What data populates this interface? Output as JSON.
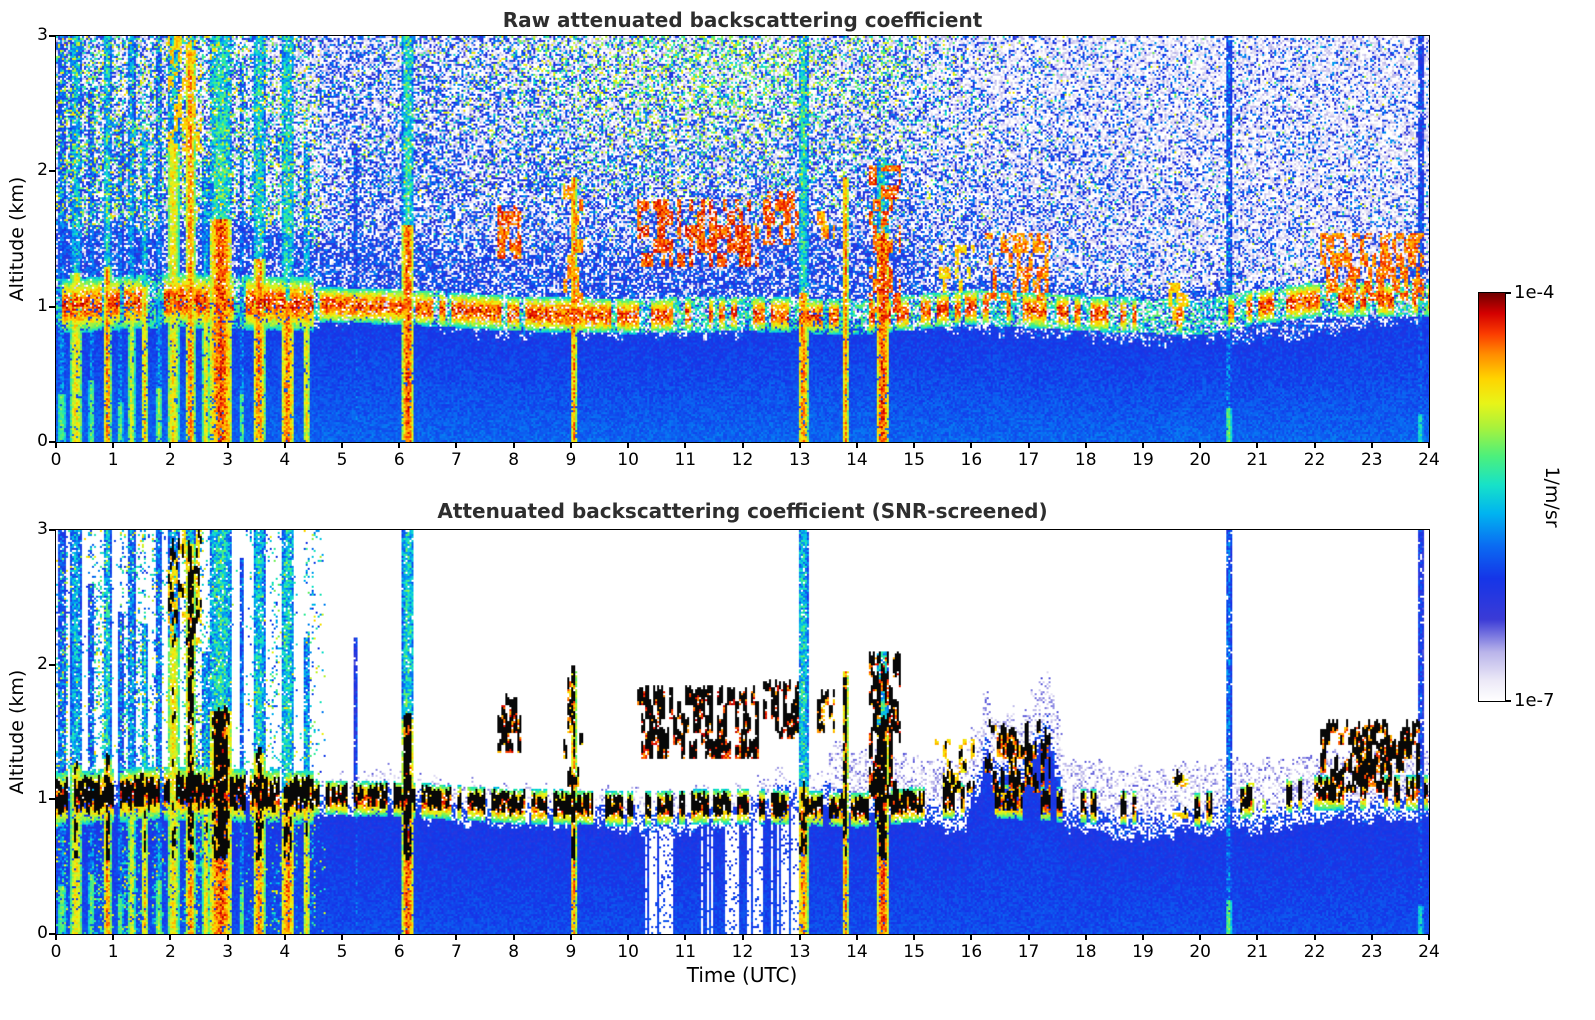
{
  "chart_data": {
    "type": "heatmap",
    "panels": [
      {
        "title": "Raw attenuated backscattering coefficient",
        "x_range": [
          0,
          24
        ],
        "y_range": [
          0,
          3
        ],
        "x_ticks": [
          0,
          1,
          2,
          3,
          4,
          5,
          6,
          7,
          8,
          9,
          10,
          11,
          12,
          13,
          14,
          15,
          16,
          17,
          18,
          19,
          20,
          21,
          22,
          23,
          24
        ],
        "y_ticks": [
          0,
          1,
          2,
          3
        ],
        "y_label": "Altitude (km)",
        "snr_screened": false
      },
      {
        "title": "Attenuated backscattering coefficient (SNR-screened)",
        "x_range": [
          0,
          24
        ],
        "y_range": [
          0,
          3
        ],
        "x_ticks": [
          0,
          1,
          2,
          3,
          4,
          5,
          6,
          7,
          8,
          9,
          10,
          11,
          12,
          13,
          14,
          15,
          16,
          17,
          18,
          19,
          20,
          21,
          22,
          23,
          24
        ],
        "y_ticks": [
          0,
          1,
          2,
          3
        ],
        "y_label": "Altitude (km)",
        "x_label": "Time (UTC)",
        "snr_screened": true
      }
    ],
    "colorbar": {
      "label": "1/m/sr",
      "tick_top": "1e-4",
      "tick_bottom": "1e-7",
      "vmin": 1e-07,
      "vmax": 0.0001,
      "scale": "log",
      "stops": [
        [
          0.0,
          "#ffffff"
        ],
        [
          0.05,
          "#ece9f7"
        ],
        [
          0.12,
          "#b9b4ea"
        ],
        [
          0.2,
          "#3b3bd6"
        ],
        [
          0.3,
          "#1535e8"
        ],
        [
          0.38,
          "#0a6bf2"
        ],
        [
          0.46,
          "#00b4f0"
        ],
        [
          0.53,
          "#17e2c8"
        ],
        [
          0.6,
          "#4cf07c"
        ],
        [
          0.67,
          "#a8f23c"
        ],
        [
          0.73,
          "#e8f418"
        ],
        [
          0.79,
          "#ffd400"
        ],
        [
          0.85,
          "#ff8c00"
        ],
        [
          0.9,
          "#fb3c00"
        ],
        [
          0.95,
          "#d40000"
        ],
        [
          1.0,
          "#700000"
        ]
      ]
    },
    "features": {
      "boundary_layer_top_km": [
        [
          0,
          1.0
        ],
        [
          1,
          1.0
        ],
        [
          2,
          1.05
        ],
        [
          3,
          1.05
        ],
        [
          4,
          0.95
        ],
        [
          5,
          0.88
        ],
        [
          6,
          0.9
        ],
        [
          7,
          0.82
        ],
        [
          8,
          0.8
        ],
        [
          9,
          0.82
        ],
        [
          10,
          0.78
        ],
        [
          11,
          0.76
        ],
        [
          12,
          0.8
        ],
        [
          13,
          0.95
        ],
        [
          14,
          0.9
        ],
        [
          15,
          0.82
        ],
        [
          16,
          0.8
        ],
        [
          17,
          0.82
        ],
        [
          18,
          0.76
        ],
        [
          19,
          0.74
        ],
        [
          20,
          0.76
        ],
        [
          21,
          0.78
        ],
        [
          22,
          0.8
        ],
        [
          23,
          0.85
        ],
        [
          24,
          0.88
        ]
      ],
      "speckle_density": [
        [
          0,
          0.62
        ],
        [
          4,
          0.52
        ],
        [
          7,
          0.5
        ],
        [
          9,
          0.54
        ],
        [
          12,
          0.56
        ],
        [
          15,
          0.5
        ],
        [
          17,
          0.4
        ],
        [
          20,
          0.32
        ],
        [
          24,
          0.3
        ]
      ],
      "aerosol_layer_center_km": [
        [
          0,
          1.0
        ],
        [
          2,
          1.05
        ],
        [
          4,
          1.02
        ],
        [
          6,
          1.0
        ],
        [
          8,
          0.95
        ],
        [
          10,
          0.93
        ],
        [
          12,
          0.95
        ],
        [
          14,
          0.92
        ],
        [
          16,
          1.0
        ],
        [
          18,
          0.95
        ],
        [
          20,
          0.92
        ],
        [
          21,
          1.0
        ],
        [
          22,
          1.05
        ],
        [
          24,
          1.05
        ]
      ],
      "screened_blue_bump_km": [
        [
          0,
          0
        ],
        [
          15.9,
          0
        ],
        [
          16.2,
          0.5
        ],
        [
          17.3,
          0.55
        ],
        [
          17.7,
          0
        ],
        [
          24,
          0
        ]
      ],
      "attenuation_hole_interval_h": [
        10.3,
        13.25
      ],
      "precip_streaks": [
        [
          0.1,
          0.07,
          3.0,
          0.7,
          0.35
        ],
        [
          0.35,
          0.1,
          3.0,
          0.85,
          1.25
        ],
        [
          0.62,
          0.05,
          2.6,
          0.7,
          0.45
        ],
        [
          0.9,
          0.06,
          3.0,
          0.95,
          1.3
        ],
        [
          1.12,
          0.05,
          2.4,
          0.7,
          0.3
        ],
        [
          1.32,
          0.06,
          3.0,
          0.8,
          0.95
        ],
        [
          1.55,
          0.05,
          2.3,
          0.9,
          1.15
        ],
        [
          1.8,
          0.05,
          3.0,
          0.75,
          0.4
        ],
        [
          2.05,
          0.1,
          3.0,
          0.85,
          2.2
        ],
        [
          2.35,
          0.08,
          3.0,
          0.95,
          2.9
        ],
        [
          2.62,
          0.06,
          2.1,
          0.85,
          1.05
        ],
        [
          2.88,
          0.2,
          3.0,
          1.0,
          1.65
        ],
        [
          3.25,
          0.04,
          2.8,
          0.7,
          0.35
        ],
        [
          3.55,
          0.1,
          3.0,
          0.95,
          1.35
        ],
        [
          4.05,
          0.12,
          3.0,
          0.95,
          1.05
        ],
        [
          4.38,
          0.06,
          2.2,
          0.85,
          1.0
        ],
        [
          5.25,
          0.035,
          2.2,
          0.6,
          0.0
        ],
        [
          6.15,
          0.1,
          3.0,
          1.0,
          1.6
        ],
        [
          9.05,
          0.05,
          1.95,
          0.95,
          1.95
        ],
        [
          13.06,
          0.09,
          3.0,
          0.95,
          1.1
        ],
        [
          13.8,
          0.05,
          1.95,
          0.95,
          1.95
        ],
        [
          14.45,
          0.11,
          2.1,
          1.0,
          1.55
        ],
        [
          20.5,
          0.05,
          3.0,
          0.7,
          0.25
        ],
        [
          23.85,
          0.05,
          3.0,
          0.6,
          0.2
        ]
      ],
      "cloud_layers": [
        [
          7.72,
          8.12,
          1.35,
          1.75,
          0.55,
          0.95
        ],
        [
          8.88,
          9.2,
          0.95,
          1.9,
          0.4,
          0.9
        ],
        [
          10.15,
          12.3,
          1.3,
          1.8,
          0.6,
          0.97
        ],
        [
          12.35,
          13.0,
          1.45,
          1.85,
          0.55,
          0.95
        ],
        [
          13.3,
          13.6,
          1.5,
          1.78,
          0.45,
          0.9
        ],
        [
          14.2,
          14.75,
          0.95,
          2.05,
          0.5,
          0.95
        ],
        [
          15.35,
          16.05,
          1.05,
          1.45,
          0.4,
          0.85
        ],
        [
          16.25,
          17.4,
          1.05,
          1.55,
          0.5,
          0.92
        ],
        [
          19.45,
          19.78,
          0.85,
          1.18,
          0.45,
          0.85
        ],
        [
          20.85,
          21.15,
          0.9,
          1.12,
          0.3,
          0.75
        ],
        [
          22.1,
          23.92,
          1.05,
          1.55,
          0.55,
          0.93
        ],
        [
          1.95,
          2.55,
          2.15,
          3.0,
          0.4,
          0.85
        ]
      ]
    }
  }
}
